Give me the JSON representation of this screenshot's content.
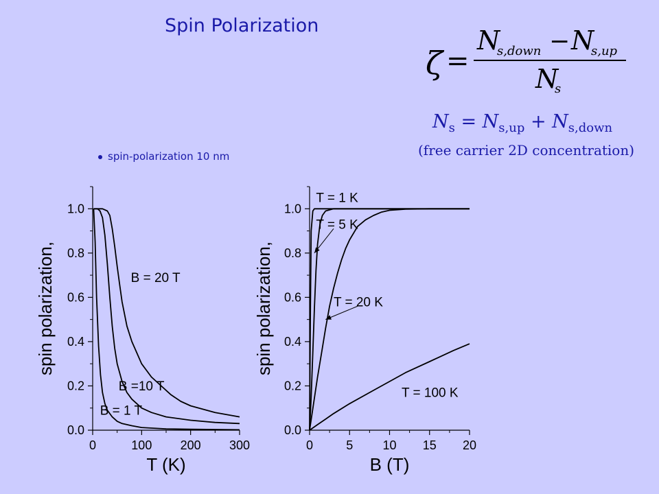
{
  "slide": {
    "title": "Spin Polarization",
    "bullet": "spin-polarization 10 nm",
    "formula": {
      "lhs": "ζ",
      "numerator_a": "N",
      "numerator_a_sub": "s,down",
      "minus": "−",
      "numerator_b": "N",
      "numerator_b_sub": "s,up",
      "denominator": "N",
      "denominator_sub": "s"
    },
    "ns_equation": {
      "ns": "N",
      "ns_sub": "s",
      "eq": " = ",
      "up": "N",
      "up_sub": "s,up",
      "plus": " + ",
      "down": "N",
      "down_sub": "s,down"
    },
    "ns_note": "(free carrier 2D concentration)"
  },
  "chart_data": [
    {
      "type": "line",
      "xlabel": "T (K)",
      "ylabel": "spin polarization,",
      "xlim": [
        0,
        300
      ],
      "ylim": [
        0,
        1.1
      ],
      "xticks": [
        "0",
        "100",
        "200",
        "300"
      ],
      "xtick_values": [
        0,
        100,
        200,
        300
      ],
      "yticks": [
        "0.0",
        "0.2",
        "0.4",
        "0.6",
        "0.8",
        "1.0"
      ],
      "ytick_values": [
        0,
        0.2,
        0.4,
        0.6,
        0.8,
        1.0
      ],
      "series": [
        {
          "name": "B = 1 T",
          "x": [
            2,
            5,
            8,
            12,
            16,
            20,
            25,
            30,
            40,
            50,
            60,
            80,
            100,
            150,
            200,
            250,
            300
          ],
          "y": [
            1.0,
            0.85,
            0.6,
            0.38,
            0.25,
            0.17,
            0.12,
            0.09,
            0.06,
            0.04,
            0.03,
            0.02,
            0.012,
            0.006,
            0.004,
            0.003,
            0.002
          ]
        },
        {
          "name": "B = 10 T",
          "x": [
            2,
            10,
            15,
            20,
            25,
            30,
            35,
            40,
            45,
            50,
            60,
            70,
            80,
            100,
            120,
            150,
            200,
            250,
            300
          ],
          "y": [
            1.0,
            1.0,
            0.99,
            0.96,
            0.88,
            0.75,
            0.6,
            0.47,
            0.37,
            0.3,
            0.22,
            0.17,
            0.14,
            0.1,
            0.08,
            0.06,
            0.045,
            0.035,
            0.03
          ]
        },
        {
          "name": "B = 20 T",
          "x": [
            2,
            10,
            20,
            30,
            35,
            40,
            45,
            50,
            55,
            60,
            70,
            80,
            90,
            100,
            120,
            140,
            160,
            180,
            200,
            250,
            300
          ],
          "y": [
            1.0,
            1.0,
            1.0,
            0.99,
            0.97,
            0.91,
            0.83,
            0.74,
            0.66,
            0.58,
            0.47,
            0.4,
            0.35,
            0.3,
            0.24,
            0.2,
            0.16,
            0.13,
            0.11,
            0.08,
            0.06
          ]
        }
      ],
      "annotations": [
        {
          "text": "B = 20 T",
          "x": 78,
          "y": 0.67
        },
        {
          "text": "B =10 T",
          "x": 53,
          "y": 0.18
        },
        {
          "text": "B = 1 T",
          "x": 15,
          "y": 0.07
        }
      ]
    },
    {
      "type": "line",
      "xlabel": "B (T)",
      "ylabel": "spin polarization,",
      "xlim": [
        0,
        20
      ],
      "ylim": [
        0,
        1.1
      ],
      "xticks": [
        "0",
        "5",
        "10",
        "15",
        "20"
      ],
      "xtick_values": [
        0,
        5,
        10,
        15,
        20
      ],
      "yticks": [
        "0.0",
        "0.2",
        "0.4",
        "0.6",
        "0.8",
        "1.0"
      ],
      "ytick_values": [
        0,
        0.2,
        0.4,
        0.6,
        0.8,
        1.0
      ],
      "series": [
        {
          "name": "T = 1 K",
          "x": [
            0,
            0.1,
            0.2,
            0.4,
            0.6,
            1,
            20
          ],
          "y": [
            0,
            0.55,
            0.9,
            0.99,
            1.0,
            1.0,
            1.0
          ]
        },
        {
          "name": "T = 5 K",
          "x": [
            0,
            0.2,
            0.4,
            0.6,
            0.8,
            1.0,
            1.3,
            1.6,
            2,
            3,
            20
          ],
          "y": [
            0,
            0.15,
            0.35,
            0.55,
            0.72,
            0.84,
            0.93,
            0.97,
            0.99,
            1.0,
            1.0
          ]
        },
        {
          "name": "T = 20 K",
          "x": [
            0,
            0.5,
            1,
            1.5,
            2,
            2.5,
            3,
            3.5,
            4,
            4.5,
            5,
            6,
            7,
            8,
            9,
            10,
            12,
            15,
            20
          ],
          "y": [
            0,
            0.12,
            0.24,
            0.35,
            0.46,
            0.56,
            0.64,
            0.71,
            0.77,
            0.82,
            0.86,
            0.92,
            0.95,
            0.97,
            0.985,
            0.993,
            0.998,
            1.0,
            1.0
          ]
        },
        {
          "name": "T = 100 K",
          "x": [
            0,
            1,
            2,
            3,
            5,
            8,
            10,
            12,
            15,
            18,
            20
          ],
          "y": [
            0,
            0.025,
            0.05,
            0.075,
            0.12,
            0.18,
            0.22,
            0.26,
            0.31,
            0.36,
            0.39
          ]
        }
      ],
      "annotations": [
        {
          "text": "T = 1 K",
          "x": 0.8,
          "y": 1.03
        },
        {
          "text": "T = 5 K",
          "x": 0.8,
          "y": 0.91
        },
        {
          "text": "T = 20 K",
          "x": 3.0,
          "y": 0.56
        },
        {
          "text": "T = 100 K",
          "x": 11.5,
          "y": 0.15
        }
      ],
      "arrows": [
        {
          "from_x": 3.0,
          "from_y": 0.91,
          "to_x": 0.6,
          "to_y": 0.8
        },
        {
          "from_x": 6.0,
          "from_y": 0.56,
          "to_x": 2.0,
          "to_y": 0.5
        }
      ]
    }
  ]
}
